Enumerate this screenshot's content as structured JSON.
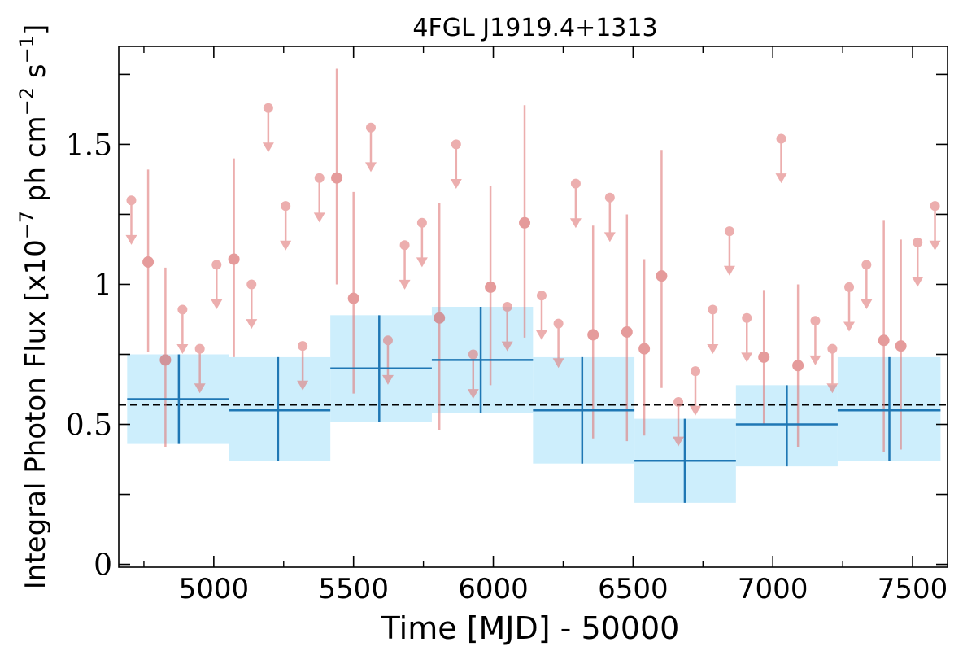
{
  "chart_data": {
    "type": "scatter",
    "title": "4FGL J1919.4+1313",
    "xlabel": "Time [MJD] - 50000",
    "ylabel": "Integral Photon Flux [x10",
    "ylabel_exp1": "−7",
    "ylabel_mid": " ph cm",
    "ylabel_exp2": "−2",
    "ylabel_s": " s",
    "ylabel_exp3": "−1",
    "ylabel_end": "]",
    "xlim": [
      4660,
      7625
    ],
    "ylim": [
      -0.01,
      1.85
    ],
    "xticks": [
      5000,
      5500,
      6000,
      6500,
      7000,
      7500
    ],
    "xtick_labels": [
      "5000",
      "5500",
      "6000",
      "6500",
      "7000",
      "7500"
    ],
    "yticks": [
      0,
      0.5,
      1,
      1.5
    ],
    "ytick_labels": [
      "0",
      "0.5",
      "1",
      "1.5"
    ],
    "ymajor_ticks": [
      0,
      0.25,
      0.5,
      0.75,
      1,
      1.25,
      1.5,
      1.75
    ],
    "grid": false,
    "mean_line": {
      "y": 0.57,
      "style": "dashed",
      "color": "#000000"
    },
    "series": [
      {
        "kind": "binned_flux",
        "color": "#1f77b4",
        "band_color": "#cdeefc",
        "points": [
          {
            "x": 4875,
            "x_lo": 4690,
            "x_hi": 5055,
            "y": 0.59,
            "y_lo": 0.43,
            "y_hi": 0.75
          },
          {
            "x": 5230,
            "x_lo": 5055,
            "x_hi": 5417,
            "y": 0.55,
            "y_lo": 0.37,
            "y_hi": 0.74
          },
          {
            "x": 5592,
            "x_lo": 5417,
            "x_hi": 5780,
            "y": 0.7,
            "y_lo": 0.51,
            "y_hi": 0.89
          },
          {
            "x": 5955,
            "x_lo": 5780,
            "x_hi": 6142,
            "y": 0.73,
            "y_lo": 0.54,
            "y_hi": 0.92
          },
          {
            "x": 6318,
            "x_lo": 6142,
            "x_hi": 6505,
            "y": 0.55,
            "y_lo": 0.36,
            "y_hi": 0.74
          },
          {
            "x": 6685,
            "x_lo": 6505,
            "x_hi": 6868,
            "y": 0.37,
            "y_lo": 0.22,
            "y_hi": 0.52
          },
          {
            "x": 7050,
            "x_lo": 6868,
            "x_hi": 7232,
            "y": 0.5,
            "y_lo": 0.35,
            "y_hi": 0.64
          },
          {
            "x": 7417,
            "x_lo": 7232,
            "x_hi": 7600,
            "y": 0.55,
            "y_lo": 0.37,
            "y_hi": 0.74
          }
        ]
      },
      {
        "kind": "short_bins",
        "color": "#e07a7a",
        "points": [
          {
            "x": 4705,
            "y": 1.3,
            "upper_limit": true
          },
          {
            "x": 4765,
            "y": 1.08,
            "y_lo": 0.76,
            "y_hi": 1.41
          },
          {
            "x": 4827,
            "y": 0.73,
            "y_lo": 0.42,
            "y_hi": 1.06
          },
          {
            "x": 4888,
            "y": 0.91,
            "upper_limit": true
          },
          {
            "x": 4950,
            "y": 0.77,
            "upper_limit": true
          },
          {
            "x": 5010,
            "y": 1.07,
            "upper_limit": true
          },
          {
            "x": 5072,
            "y": 1.09,
            "y_lo": 0.74,
            "y_hi": 1.45
          },
          {
            "x": 5135,
            "y": 1.0,
            "upper_limit": true
          },
          {
            "x": 5195,
            "y": 1.63,
            "upper_limit": true
          },
          {
            "x": 5257,
            "y": 1.28,
            "upper_limit": true
          },
          {
            "x": 5318,
            "y": 0.78,
            "upper_limit": true
          },
          {
            "x": 5378,
            "y": 1.38,
            "upper_limit": true
          },
          {
            "x": 5440,
            "y": 1.38,
            "y_lo": 1.0,
            "y_hi": 1.77
          },
          {
            "x": 5500,
            "y": 0.95,
            "y_lo": 0.61,
            "y_hi": 1.33
          },
          {
            "x": 5562,
            "y": 1.56,
            "upper_limit": true
          },
          {
            "x": 5623,
            "y": 0.8,
            "upper_limit": true
          },
          {
            "x": 5683,
            "y": 1.14,
            "upper_limit": true
          },
          {
            "x": 5745,
            "y": 1.22,
            "upper_limit": true
          },
          {
            "x": 5807,
            "y": 0.88,
            "y_lo": 0.48,
            "y_hi": 1.29
          },
          {
            "x": 5867,
            "y": 1.5,
            "upper_limit": true
          },
          {
            "x": 5928,
            "y": 0.75,
            "upper_limit": true
          },
          {
            "x": 5990,
            "y": 0.99,
            "y_lo": 0.64,
            "y_hi": 1.35
          },
          {
            "x": 6050,
            "y": 0.92,
            "upper_limit": true
          },
          {
            "x": 6112,
            "y": 1.22,
            "y_lo": 0.81,
            "y_hi": 1.64
          },
          {
            "x": 6173,
            "y": 0.96,
            "upper_limit": true
          },
          {
            "x": 6233,
            "y": 0.86,
            "upper_limit": true
          },
          {
            "x": 6295,
            "y": 1.36,
            "upper_limit": true
          },
          {
            "x": 6357,
            "y": 0.82,
            "y_lo": 0.45,
            "y_hi": 1.21
          },
          {
            "x": 6417,
            "y": 1.31,
            "upper_limit": true
          },
          {
            "x": 6478,
            "y": 0.83,
            "y_lo": 0.44,
            "y_hi": 1.25
          },
          {
            "x": 6540,
            "y": 0.77,
            "y_lo": 0.46,
            "y_hi": 1.09
          },
          {
            "x": 6602,
            "y": 1.03,
            "y_lo": 0.63,
            "y_hi": 1.48
          },
          {
            "x": 6662,
            "y": 0.58,
            "upper_limit": true
          },
          {
            "x": 6723,
            "y": 0.69,
            "upper_limit": true
          },
          {
            "x": 6785,
            "y": 0.91,
            "upper_limit": true
          },
          {
            "x": 6845,
            "y": 1.19,
            "upper_limit": true
          },
          {
            "x": 6907,
            "y": 0.88,
            "upper_limit": true
          },
          {
            "x": 6968,
            "y": 0.74,
            "y_lo": 0.5,
            "y_hi": 0.98
          },
          {
            "x": 7030,
            "y": 1.52,
            "upper_limit": true
          },
          {
            "x": 7090,
            "y": 0.71,
            "y_lo": 0.42,
            "y_hi": 1.0
          },
          {
            "x": 7152,
            "y": 0.87,
            "upper_limit": true
          },
          {
            "x": 7213,
            "y": 0.77,
            "upper_limit": true
          },
          {
            "x": 7273,
            "y": 0.99,
            "upper_limit": true
          },
          {
            "x": 7335,
            "y": 1.07,
            "upper_limit": true
          },
          {
            "x": 7397,
            "y": 0.8,
            "y_lo": 0.4,
            "y_hi": 1.23
          },
          {
            "x": 7458,
            "y": 0.78,
            "y_lo": 0.41,
            "y_hi": 1.16
          },
          {
            "x": 7518,
            "y": 1.15,
            "upper_limit": true
          },
          {
            "x": 7580,
            "y": 1.28,
            "upper_limit": true
          }
        ]
      }
    ]
  }
}
